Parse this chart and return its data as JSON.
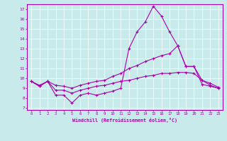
{
  "xlabel": "Windchill (Refroidissement éolien,°C)",
  "background_color": "#c8eaea",
  "grid_color": "#ffffff",
  "line_color": "#aa00aa",
  "x_ticks": [
    0,
    1,
    2,
    3,
    4,
    5,
    6,
    7,
    8,
    9,
    10,
    11,
    12,
    13,
    14,
    15,
    16,
    17,
    18,
    19,
    20,
    21,
    22,
    23
  ],
  "y_ticks": [
    7,
    8,
    9,
    10,
    11,
    12,
    13,
    14,
    15,
    16,
    17
  ],
  "ylim": [
    6.8,
    17.5
  ],
  "xlim": [
    -0.5,
    23.5
  ],
  "series1_spike": {
    "x": [
      0,
      1,
      2,
      3,
      4,
      5,
      6,
      7,
      8,
      9,
      10,
      11,
      12,
      13,
      14,
      15,
      16,
      17,
      18,
      19,
      20,
      21,
      22,
      23
    ],
    "y": [
      9.7,
      9.2,
      9.7,
      8.3,
      8.3,
      7.5,
      8.3,
      8.5,
      8.3,
      8.5,
      8.7,
      9.0,
      13.0,
      14.7,
      15.7,
      17.3,
      16.3,
      14.7,
      13.3,
      11.2,
      11.2,
      9.4,
      9.2,
      9.0
    ]
  },
  "series2_rising": {
    "x": [
      0,
      1,
      2,
      3,
      4,
      5,
      6,
      7,
      8,
      9,
      10,
      11,
      12,
      13,
      14,
      15,
      16,
      17,
      18,
      19,
      20,
      21,
      22,
      23
    ],
    "y": [
      9.7,
      9.3,
      9.7,
      9.3,
      9.2,
      9.0,
      9.3,
      9.5,
      9.7,
      9.8,
      10.2,
      10.5,
      11.0,
      11.3,
      11.7,
      12.0,
      12.3,
      12.5,
      13.3,
      11.2,
      11.2,
      9.8,
      9.5,
      9.1
    ]
  },
  "series3_flat": {
    "x": [
      0,
      1,
      2,
      3,
      4,
      5,
      6,
      7,
      8,
      9,
      10,
      11,
      12,
      13,
      14,
      15,
      16,
      17,
      18,
      19,
      20,
      21,
      22,
      23
    ],
    "y": [
      9.7,
      9.2,
      9.7,
      8.8,
      8.8,
      8.5,
      8.8,
      9.0,
      9.2,
      9.3,
      9.5,
      9.7,
      9.8,
      10.0,
      10.2,
      10.3,
      10.5,
      10.5,
      10.6,
      10.6,
      10.5,
      9.8,
      9.3,
      9.0
    ]
  }
}
